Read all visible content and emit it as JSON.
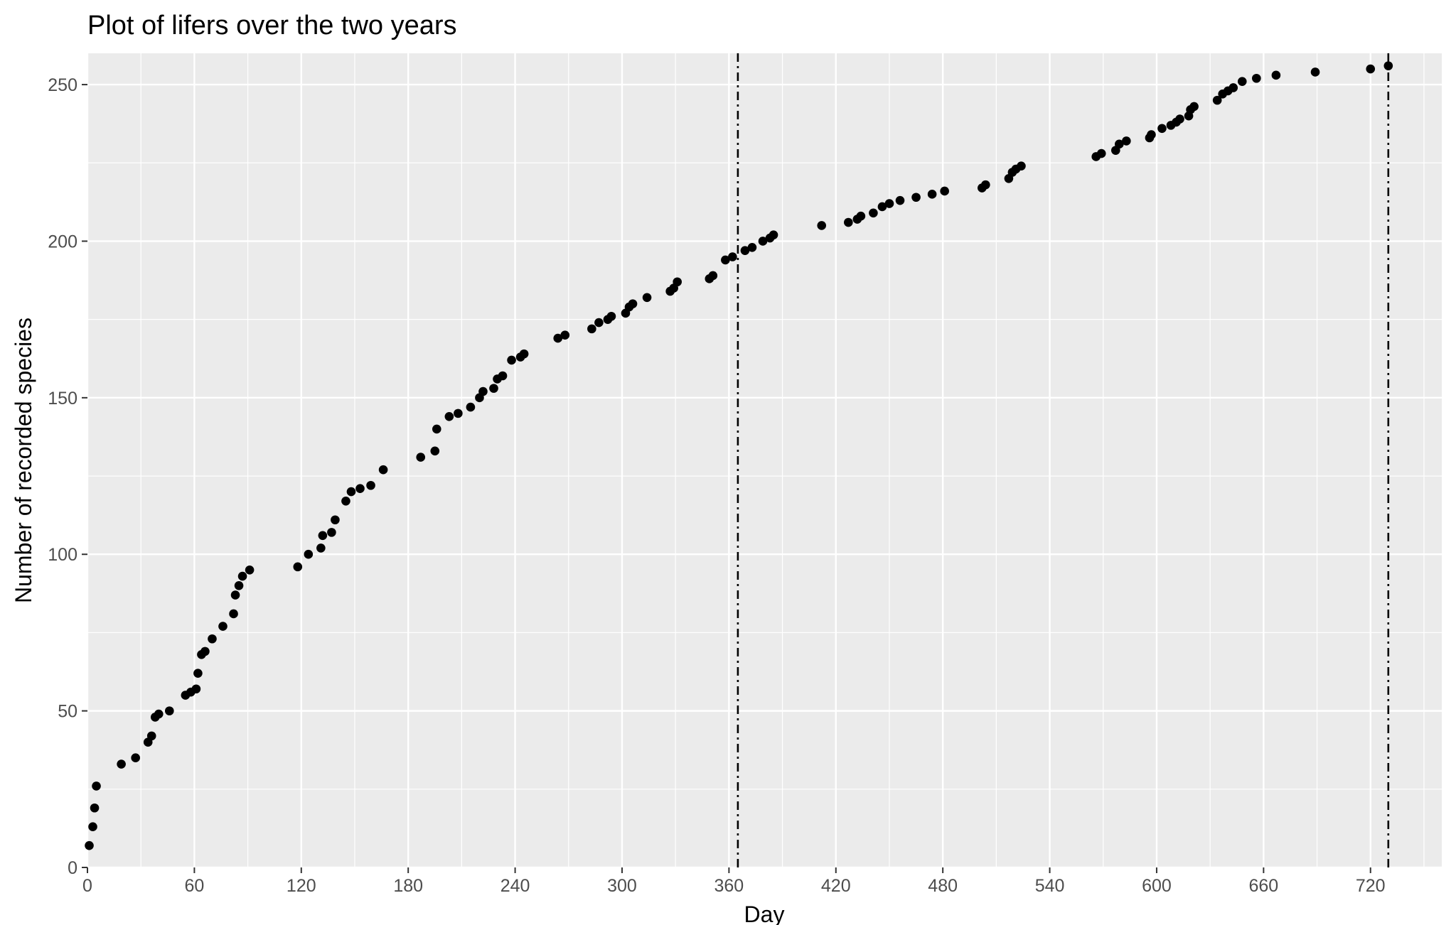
{
  "chart_data": {
    "type": "scatter",
    "title": "Plot of lifers over the two years",
    "xlabel": "Day",
    "ylabel": "Number of recorded species",
    "xlim": [
      0,
      760
    ],
    "ylim": [
      0,
      260
    ],
    "x_ticks": [
      0,
      60,
      120,
      180,
      240,
      300,
      360,
      420,
      480,
      540,
      600,
      660,
      720
    ],
    "y_ticks": [
      0,
      50,
      100,
      150,
      200,
      250
    ],
    "grid": true,
    "legend": "none",
    "vlines": [
      {
        "x": 365,
        "linetype": "dotdash"
      },
      {
        "x": 730,
        "linetype": "dotdash"
      }
    ],
    "colors": {
      "panel_background": "#ebebeb",
      "grid": "#ffffff",
      "point": "#000000",
      "vline": "#000000",
      "tick_label": "#4d4d4d"
    },
    "points": [
      [
        1,
        7
      ],
      [
        3,
        13
      ],
      [
        4,
        19
      ],
      [
        5,
        26
      ],
      [
        19,
        33
      ],
      [
        27,
        35
      ],
      [
        34,
        40
      ],
      [
        36,
        42
      ],
      [
        38,
        48
      ],
      [
        40,
        49
      ],
      [
        46,
        50
      ],
      [
        55,
        55
      ],
      [
        58,
        56
      ],
      [
        61,
        57
      ],
      [
        62,
        62
      ],
      [
        64,
        68
      ],
      [
        66,
        69
      ],
      [
        70,
        73
      ],
      [
        76,
        77
      ],
      [
        82,
        81
      ],
      [
        83,
        87
      ],
      [
        85,
        90
      ],
      [
        87,
        93
      ],
      [
        91,
        95
      ],
      [
        118,
        96
      ],
      [
        124,
        100
      ],
      [
        131,
        102
      ],
      [
        132,
        106
      ],
      [
        137,
        107
      ],
      [
        139,
        111
      ],
      [
        145,
        117
      ],
      [
        148,
        120
      ],
      [
        153,
        121
      ],
      [
        159,
        122
      ],
      [
        166,
        127
      ],
      [
        187,
        131
      ],
      [
        195,
        133
      ],
      [
        196,
        140
      ],
      [
        203,
        144
      ],
      [
        208,
        145
      ],
      [
        215,
        147
      ],
      [
        220,
        150
      ],
      [
        222,
        152
      ],
      [
        228,
        153
      ],
      [
        230,
        156
      ],
      [
        233,
        157
      ],
      [
        238,
        162
      ],
      [
        243,
        163
      ],
      [
        245,
        164
      ],
      [
        264,
        169
      ],
      [
        268,
        170
      ],
      [
        283,
        172
      ],
      [
        287,
        174
      ],
      [
        292,
        175
      ],
      [
        294,
        176
      ],
      [
        302,
        177
      ],
      [
        304,
        179
      ],
      [
        306,
        180
      ],
      [
        314,
        182
      ],
      [
        327,
        184
      ],
      [
        329,
        185
      ],
      [
        331,
        187
      ],
      [
        349,
        188
      ],
      [
        351,
        189
      ],
      [
        358,
        194
      ],
      [
        362,
        195
      ],
      [
        369,
        197
      ],
      [
        373,
        198
      ],
      [
        379,
        200
      ],
      [
        383,
        201
      ],
      [
        385,
        202
      ],
      [
        412,
        205
      ],
      [
        427,
        206
      ],
      [
        432,
        207
      ],
      [
        434,
        208
      ],
      [
        441,
        209
      ],
      [
        446,
        211
      ],
      [
        450,
        212
      ],
      [
        456,
        213
      ],
      [
        465,
        214
      ],
      [
        474,
        215
      ],
      [
        481,
        216
      ],
      [
        502,
        217
      ],
      [
        504,
        218
      ],
      [
        517,
        220
      ],
      [
        519,
        222
      ],
      [
        521,
        223
      ],
      [
        524,
        224
      ],
      [
        566,
        227
      ],
      [
        569,
        228
      ],
      [
        577,
        229
      ],
      [
        579,
        231
      ],
      [
        583,
        232
      ],
      [
        596,
        233
      ],
      [
        597,
        234
      ],
      [
        603,
        236
      ],
      [
        608,
        237
      ],
      [
        611,
        238
      ],
      [
        613,
        239
      ],
      [
        618,
        240
      ],
      [
        619,
        242
      ],
      [
        621,
        243
      ],
      [
        634,
        245
      ],
      [
        637,
        247
      ],
      [
        640,
        248
      ],
      [
        643,
        249
      ],
      [
        648,
        251
      ],
      [
        656,
        252
      ],
      [
        667,
        253
      ],
      [
        689,
        254
      ],
      [
        720,
        255
      ],
      [
        730,
        256
      ]
    ]
  }
}
